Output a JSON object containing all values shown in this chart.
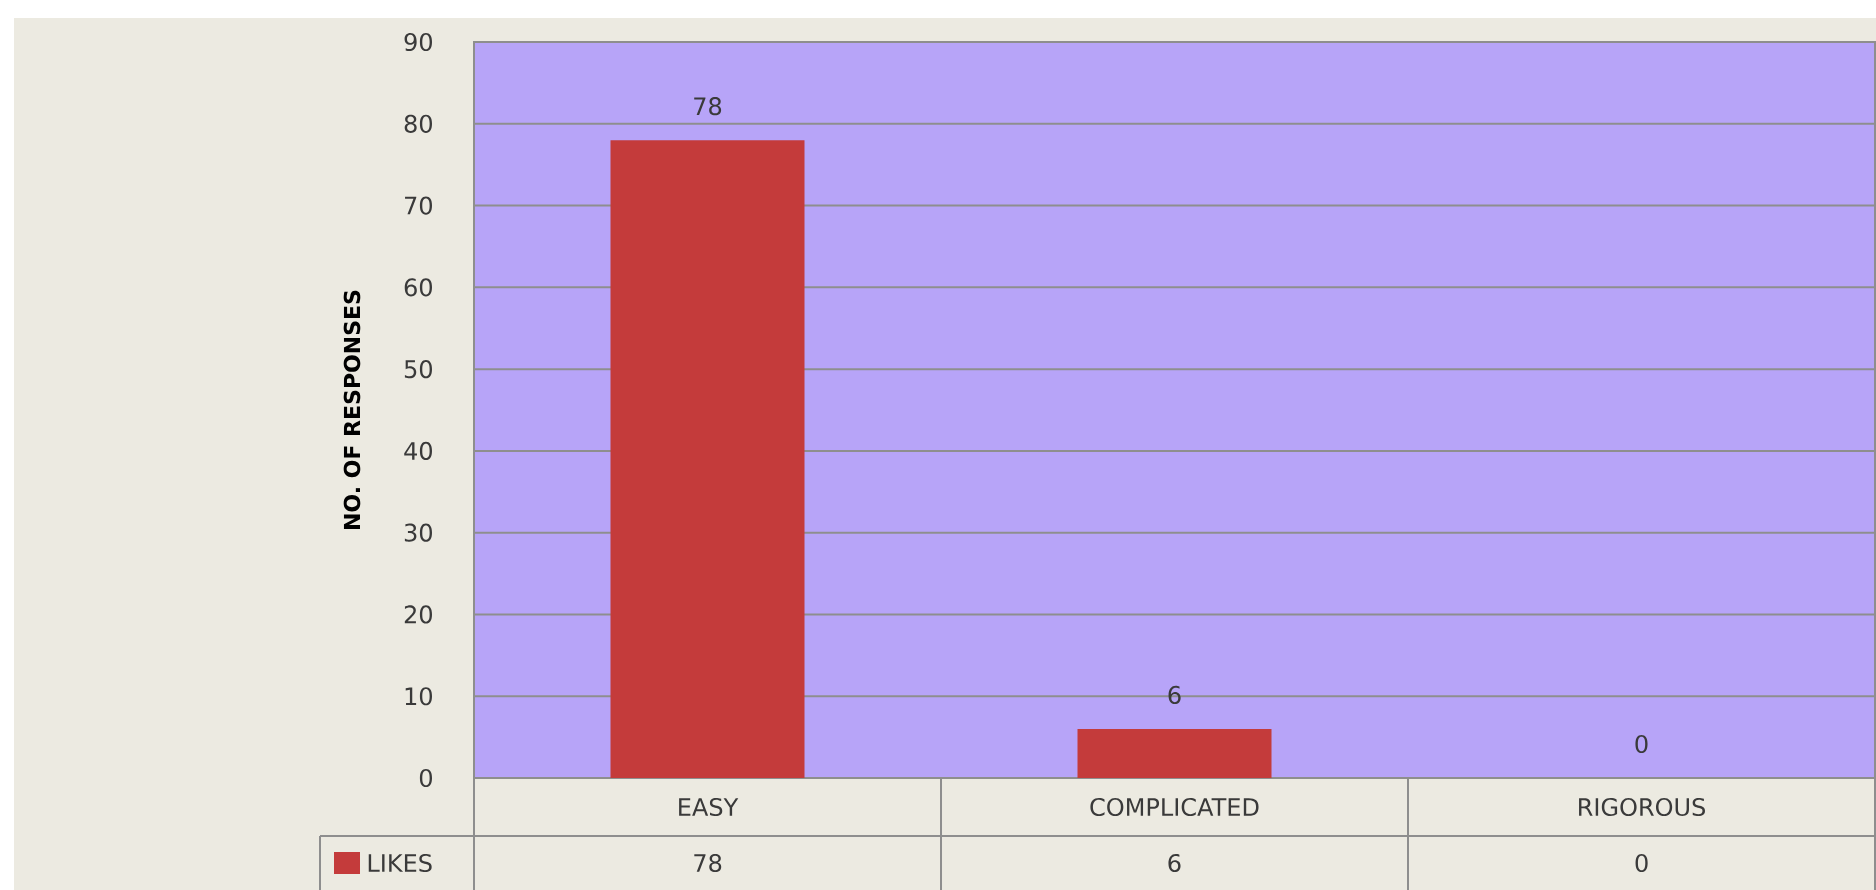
{
  "chart_data": {
    "type": "bar",
    "categories": [
      "EASY",
      "COMPLICATED",
      "RIGOROUS"
    ],
    "series": [
      {
        "name": "LIKES",
        "color": "#c43b3b",
        "values": [
          78,
          6,
          0
        ],
        "value_labels": [
          "78",
          "6",
          "0"
        ]
      }
    ],
    "ylabel": "NO. OF RESPONSES",
    "ylim": [
      0,
      90
    ],
    "yticks": [
      0,
      10,
      20,
      30,
      40,
      50,
      60,
      70,
      80,
      90
    ],
    "grid": "y",
    "legend": "bottom left",
    "annotations": [
      "78",
      "6",
      "0"
    ]
  }
}
